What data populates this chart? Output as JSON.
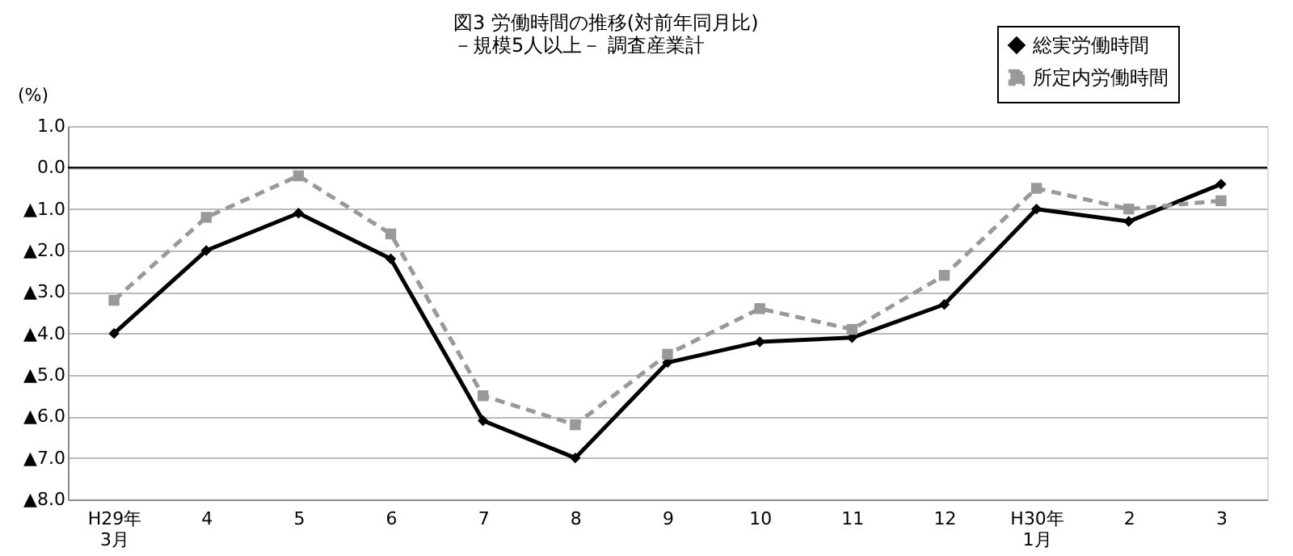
{
  "chart_data": {
    "type": "line",
    "title": "図3  労働時間の推移(対前年同月比)",
    "subtitle": "－規模5人以上－  調査産業計",
    "ylabel": "(%)",
    "categories": [
      "H29年\n3月",
      "4",
      "5",
      "6",
      "7",
      "8",
      "9",
      "10",
      "11",
      "12",
      "H30年\n1月",
      "2",
      "3"
    ],
    "series": [
      {
        "name": "総実労働時間",
        "color": "#000000",
        "marker": "diamond",
        "line_style": "solid",
        "values": [
          -4.0,
          -2.0,
          -1.1,
          -2.2,
          -6.1,
          -7.0,
          -4.7,
          -4.2,
          -4.1,
          -3.3,
          -1.0,
          -1.3,
          -0.4
        ]
      },
      {
        "name": "所定内労働時間",
        "color": "#999999",
        "marker": "square",
        "line_style": "dashed",
        "values": [
          -3.2,
          -1.2,
          -0.2,
          -1.6,
          -5.5,
          -6.2,
          -4.5,
          -3.4,
          -3.9,
          -2.6,
          -0.5,
          -1.0,
          -0.8
        ]
      }
    ],
    "ylim": [
      -8,
      1
    ],
    "yticks": [
      {
        "value": 1,
        "label": "1.0"
      },
      {
        "value": 0,
        "label": "0.0"
      },
      {
        "value": -1,
        "label": "▲1.0"
      },
      {
        "value": -2,
        "label": "▲2.0"
      },
      {
        "value": -3,
        "label": "▲3.0"
      },
      {
        "value": -4,
        "label": "▲4.0"
      },
      {
        "value": -5,
        "label": "▲5.0"
      },
      {
        "value": -6,
        "label": "▲6.0"
      },
      {
        "value": -7,
        "label": "▲7.0"
      },
      {
        "value": -8,
        "label": "▲8.0"
      }
    ],
    "ref_lines": [
      {
        "axis": "y",
        "value": 0,
        "color": "#000000"
      }
    ],
    "grid": "y",
    "legend": "top right"
  }
}
